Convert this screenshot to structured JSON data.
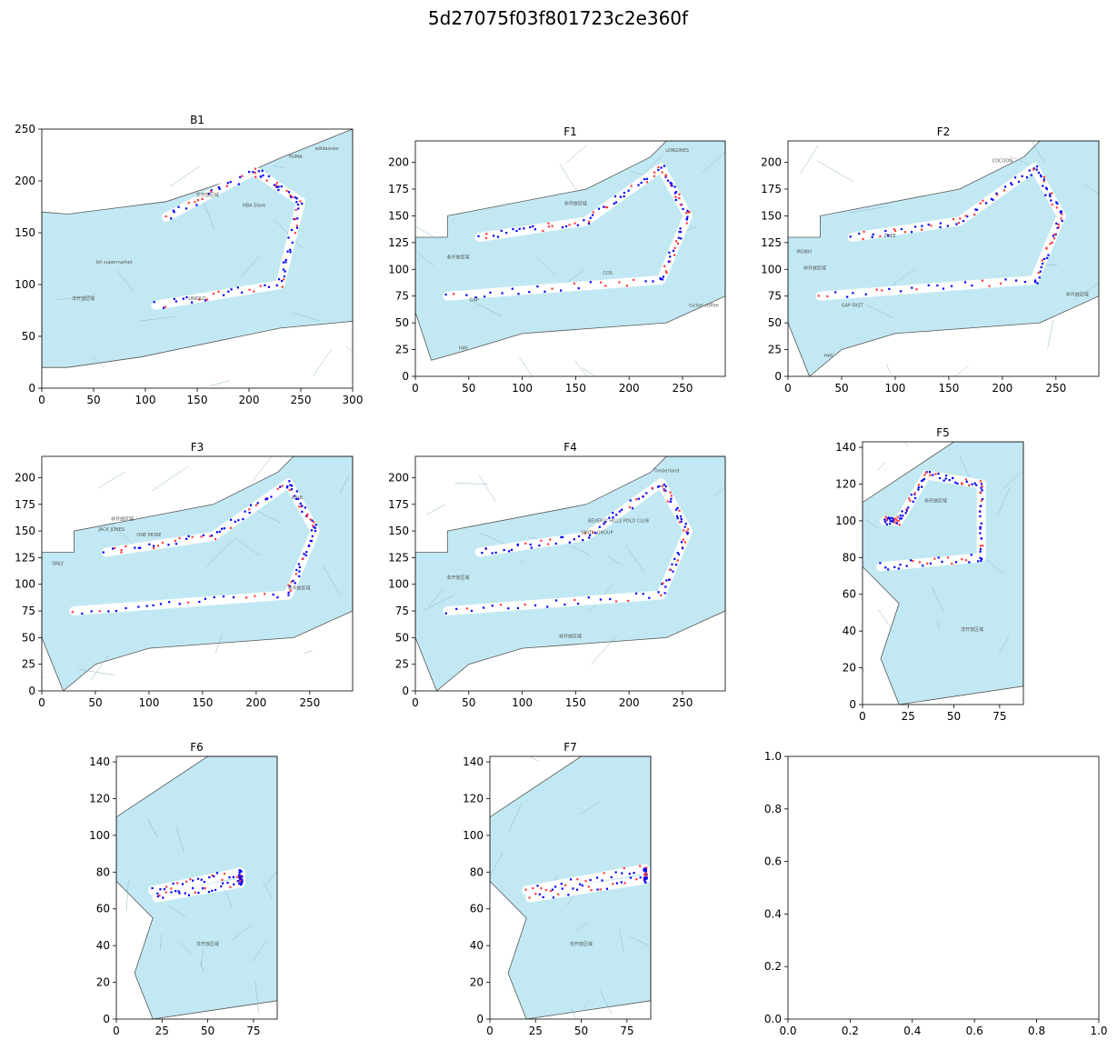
{
  "figure": {
    "suptitle": "5d27075f03f801723c2e360f",
    "colors": {
      "floor_fill": "#c2e9f3",
      "floor_edge": "#555555",
      "shop_edge": "#8fb6c2",
      "corridor": "#ffffff",
      "trajectory_blue": "#0000ff",
      "trajectory_red": "#ff3b3b",
      "axis": "#000000"
    }
  },
  "panels": [
    {
      "id": "B1",
      "title": "B1",
      "xlim": [
        0,
        300
      ],
      "ylim": [
        0,
        250
      ],
      "xticks": [
        0,
        50,
        100,
        150,
        200,
        250,
        300
      ],
      "yticks": [
        0,
        50,
        100,
        150,
        200,
        250
      ],
      "outline": [
        [
          0,
          170
        ],
        [
          25,
          168
        ],
        [
          120,
          180
        ],
        [
          180,
          200
        ],
        [
          230,
          222
        ],
        [
          300,
          250
        ],
        [
          305,
          65
        ],
        [
          230,
          58
        ],
        [
          95,
          30
        ],
        [
          25,
          20
        ],
        [
          0,
          20
        ]
      ],
      "corridor": [
        [
          110,
          80
        ],
        [
          230,
          100
        ],
        [
          250,
          180
        ],
        [
          205,
          210
        ],
        [
          120,
          165
        ]
      ],
      "shop_labels": [
        {
          "text": "bit supermarket",
          "x": 70,
          "y": 120
        },
        {
          "text": "UNIQLO",
          "x": 150,
          "y": 85
        },
        {
          "text": "NBA Store",
          "x": 205,
          "y": 175
        },
        {
          "text": "adidasneo",
          "x": 275,
          "y": 230
        },
        {
          "text": "PUMA",
          "x": 245,
          "y": 222
        },
        {
          "text": "非开放区域",
          "x": 160,
          "y": 185
        },
        {
          "text": "非开放区域",
          "x": 40,
          "y": 85
        }
      ]
    },
    {
      "id": "F1",
      "title": "F1",
      "xlim": [
        0,
        290
      ],
      "ylim": [
        0,
        220
      ],
      "xticks": [
        0,
        50,
        100,
        150,
        200,
        250
      ],
      "yticks": [
        0,
        25,
        50,
        75,
        100,
        125,
        150,
        175,
        200
      ],
      "outline": [
        [
          0,
          130
        ],
        [
          30,
          130
        ],
        [
          30,
          150
        ],
        [
          160,
          175
        ],
        [
          220,
          205
        ],
        [
          235,
          220
        ],
        [
          290,
          220
        ],
        [
          290,
          75
        ],
        [
          235,
          50
        ],
        [
          100,
          40
        ],
        [
          50,
          25
        ],
        [
          15,
          15
        ],
        [
          0,
          60
        ]
      ],
      "corridor": [
        [
          30,
          75
        ],
        [
          230,
          90
        ],
        [
          255,
          150
        ],
        [
          230,
          195
        ],
        [
          160,
          145
        ],
        [
          60,
          130
        ]
      ],
      "shop_labels": [
        {
          "text": "LONGINES",
          "x": 245,
          "y": 210
        },
        {
          "text": "COS",
          "x": 180,
          "y": 95
        },
        {
          "text": "GAP",
          "x": 55,
          "y": 70
        },
        {
          "text": "HAY",
          "x": 45,
          "y": 25
        },
        {
          "text": "tucker coffee",
          "x": 270,
          "y": 65
        },
        {
          "text": "非开放区域",
          "x": 40,
          "y": 110
        },
        {
          "text": "非开放区域",
          "x": 150,
          "y": 160
        }
      ]
    },
    {
      "id": "F2",
      "title": "F2",
      "xlim": [
        0,
        290
      ],
      "ylim": [
        0,
        220
      ],
      "xticks": [
        0,
        50,
        100,
        150,
        200,
        250
      ],
      "yticks": [
        0,
        25,
        50,
        75,
        100,
        125,
        150,
        175,
        200
      ],
      "outline": [
        [
          0,
          130
        ],
        [
          30,
          130
        ],
        [
          30,
          150
        ],
        [
          160,
          175
        ],
        [
          220,
          205
        ],
        [
          235,
          220
        ],
        [
          290,
          220
        ],
        [
          290,
          75
        ],
        [
          235,
          50
        ],
        [
          100,
          40
        ],
        [
          50,
          25
        ],
        [
          20,
          0
        ],
        [
          0,
          50
        ]
      ],
      "corridor": [
        [
          30,
          75
        ],
        [
          230,
          90
        ],
        [
          255,
          150
        ],
        [
          230,
          195
        ],
        [
          160,
          145
        ],
        [
          60,
          130
        ]
      ],
      "shop_labels": [
        {
          "text": "MONKI",
          "x": 15,
          "y": 115
        },
        {
          "text": "HAY",
          "x": 38,
          "y": 18
        },
        {
          "text": "COCOON",
          "x": 200,
          "y": 200
        },
        {
          "text": "ZUEE",
          "x": 95,
          "y": 130
        },
        {
          "text": "GAP FAST",
          "x": 60,
          "y": 65
        },
        {
          "text": "非开放区域",
          "x": 25,
          "y": 100
        },
        {
          "text": "非开放区域",
          "x": 270,
          "y": 75
        }
      ]
    },
    {
      "id": "F3",
      "title": "F3",
      "xlim": [
        0,
        290
      ],
      "ylim": [
        0,
        220
      ],
      "xticks": [
        0,
        50,
        100,
        150,
        200,
        250
      ],
      "yticks": [
        0,
        25,
        50,
        75,
        100,
        125,
        150,
        175,
        200
      ],
      "outline": [
        [
          0,
          130
        ],
        [
          30,
          130
        ],
        [
          30,
          150
        ],
        [
          160,
          175
        ],
        [
          220,
          205
        ],
        [
          235,
          220
        ],
        [
          290,
          220
        ],
        [
          290,
          75
        ],
        [
          235,
          50
        ],
        [
          100,
          40
        ],
        [
          50,
          25
        ],
        [
          20,
          0
        ],
        [
          0,
          50
        ]
      ],
      "corridor": [
        [
          30,
          75
        ],
        [
          230,
          90
        ],
        [
          255,
          150
        ],
        [
          230,
          195
        ],
        [
          160,
          145
        ],
        [
          60,
          130
        ]
      ],
      "shop_labels": [
        {
          "text": "ONLY",
          "x": 15,
          "y": 118
        },
        {
          "text": "JACK JONES",
          "x": 65,
          "y": 150
        },
        {
          "text": "ONE MORE",
          "x": 100,
          "y": 145
        },
        {
          "text": "IDUB",
          "x": 238,
          "y": 180
        },
        {
          "text": "非开放区域",
          "x": 75,
          "y": 160
        },
        {
          "text": "非开放区域",
          "x": 240,
          "y": 95
        }
      ]
    },
    {
      "id": "F4",
      "title": "F4",
      "xlim": [
        0,
        290
      ],
      "ylim": [
        0,
        220
      ],
      "xticks": [
        0,
        50,
        100,
        150,
        200,
        250
      ],
      "yticks": [
        0,
        25,
        50,
        75,
        100,
        125,
        150,
        175,
        200
      ],
      "outline": [
        [
          0,
          130
        ],
        [
          30,
          130
        ],
        [
          30,
          150
        ],
        [
          160,
          175
        ],
        [
          220,
          205
        ],
        [
          235,
          220
        ],
        [
          290,
          220
        ],
        [
          290,
          75
        ],
        [
          235,
          50
        ],
        [
          100,
          40
        ],
        [
          50,
          25
        ],
        [
          20,
          0
        ],
        [
          0,
          50
        ]
      ],
      "corridor": [
        [
          30,
          75
        ],
        [
          230,
          90
        ],
        [
          255,
          150
        ],
        [
          230,
          195
        ],
        [
          160,
          145
        ],
        [
          60,
          130
        ]
      ],
      "shop_labels": [
        {
          "text": "BEVERLY HILLS POLO CLUB",
          "x": 190,
          "y": 158
        },
        {
          "text": "Timberland",
          "x": 235,
          "y": 205
        },
        {
          "text": "SMITH GROUP",
          "x": 170,
          "y": 147
        },
        {
          "text": "非开放区域",
          "x": 40,
          "y": 105
        },
        {
          "text": "非开放区域",
          "x": 145,
          "y": 50
        }
      ]
    },
    {
      "id": "F5",
      "title": "F5",
      "xlim": [
        0,
        88
      ],
      "ylim": [
        0,
        143
      ],
      "xticks": [
        0,
        25,
        50,
        75
      ],
      "yticks": [
        0,
        20,
        40,
        60,
        80,
        100,
        120,
        140
      ],
      "outline": [
        [
          0,
          110
        ],
        [
          50,
          143
        ],
        [
          88,
          143
        ],
        [
          88,
          10
        ],
        [
          20,
          0
        ],
        [
          10,
          25
        ],
        [
          20,
          55
        ],
        [
          5,
          70
        ],
        [
          0,
          75
        ]
      ],
      "corridor": [
        [
          10,
          75
        ],
        [
          65,
          80
        ],
        [
          65,
          120
        ],
        [
          35,
          125
        ],
        [
          20,
          100
        ],
        [
          12,
          100
        ]
      ],
      "shop_labels": [
        {
          "text": "非开放区域",
          "x": 60,
          "y": 40
        },
        {
          "text": "非开放区域",
          "x": 40,
          "y": 110
        }
      ]
    },
    {
      "id": "F6",
      "title": "F6",
      "xlim": [
        0,
        88
      ],
      "ylim": [
        0,
        143
      ],
      "xticks": [
        0,
        25,
        50,
        75
      ],
      "yticks": [
        0,
        20,
        40,
        60,
        80,
        100,
        120,
        140
      ],
      "outline": [
        [
          0,
          110
        ],
        [
          50,
          143
        ],
        [
          88,
          143
        ],
        [
          88,
          10
        ],
        [
          20,
          0
        ],
        [
          10,
          25
        ],
        [
          20,
          55
        ],
        [
          5,
          70
        ],
        [
          0,
          75
        ]
      ],
      "corridor": [
        [
          20,
          70
        ],
        [
          68,
          80
        ],
        [
          68,
          74
        ],
        [
          22,
          66
        ]
      ],
      "shop_labels": [
        {
          "text": "非开放区域",
          "x": 50,
          "y": 40
        }
      ]
    },
    {
      "id": "F7",
      "title": "F7",
      "xlim": [
        0,
        88
      ],
      "ylim": [
        0,
        143
      ],
      "xticks": [
        0,
        25,
        50,
        75
      ],
      "yticks": [
        0,
        20,
        40,
        60,
        80,
        100,
        120,
        140
      ],
      "outline": [
        [
          0,
          110
        ],
        [
          50,
          143
        ],
        [
          88,
          143
        ],
        [
          88,
          10
        ],
        [
          20,
          0
        ],
        [
          10,
          25
        ],
        [
          20,
          55
        ],
        [
          5,
          70
        ],
        [
          0,
          75
        ]
      ],
      "corridor": [
        [
          20,
          70
        ],
        [
          85,
          82
        ],
        [
          85,
          76
        ],
        [
          22,
          66
        ]
      ],
      "shop_labels": [
        {
          "text": "非开放区域",
          "x": 50,
          "y": 40
        }
      ]
    },
    {
      "id": "empty",
      "title": "",
      "xlim": [
        0.0,
        1.0
      ],
      "ylim": [
        0.0,
        1.0
      ],
      "xticks": [
        0.0,
        0.2,
        0.4,
        0.6,
        0.8,
        1.0
      ],
      "yticks": [
        0.0,
        0.2,
        0.4,
        0.6,
        0.8,
        1.0
      ],
      "tick_labels": [
        "0.0",
        "0.2",
        "0.4",
        "0.6",
        "0.8",
        "1.0"
      ],
      "outline": [],
      "corridor": [],
      "shop_labels": []
    }
  ]
}
